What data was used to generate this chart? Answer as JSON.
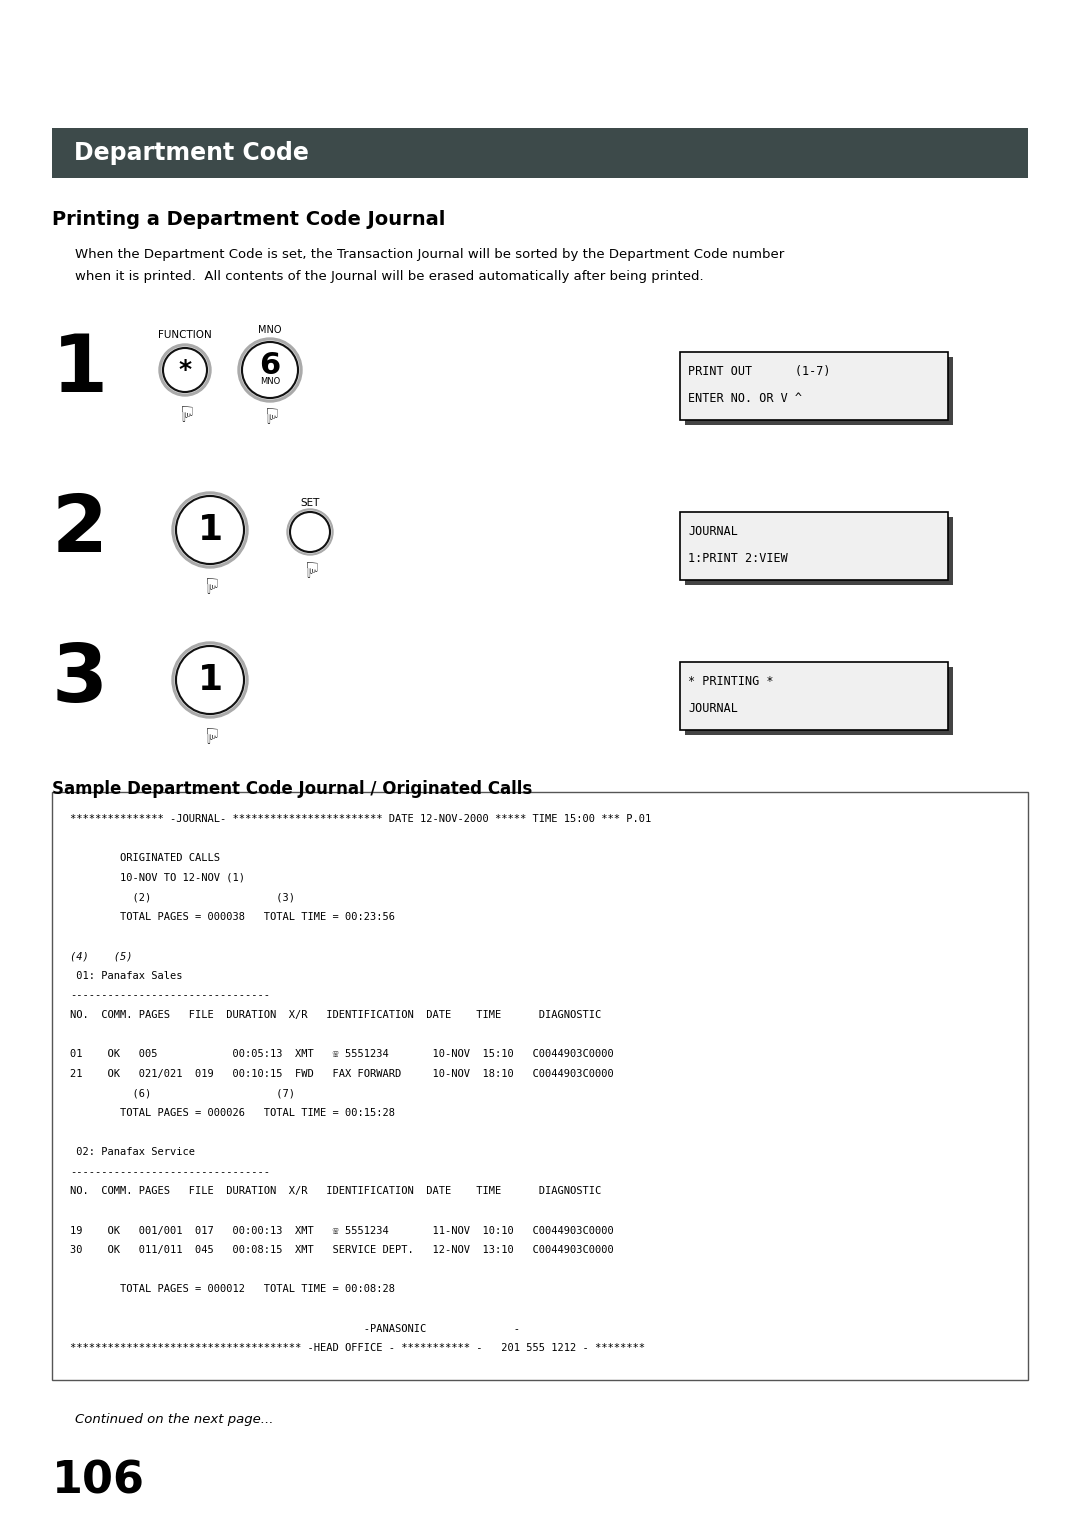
{
  "page_bg": "#ffffff",
  "header_bg": "#3d4a4a",
  "header_text": "Department Code",
  "header_text_color": "#ffffff",
  "section_title": "Printing a Department Code Journal",
  "body_text_line1": "When the Department Code is set, the Transaction Journal will be sorted by the Department Code number",
  "body_text_line2": "when it is printed.  All contents of the Journal will be erased automatically after being printed.",
  "steps": [
    {
      "number": "1",
      "display_lines": [
        "PRINT OUT      (1-7)",
        "ENTER NO. OR V ^"
      ]
    },
    {
      "number": "2",
      "display_lines": [
        "JOURNAL",
        "1:PRINT 2:VIEW"
      ]
    },
    {
      "number": "3",
      "display_lines": [
        "* PRINTING *",
        "JOURNAL"
      ]
    }
  ],
  "sample_title": "Sample Department Code Journal / Originated Calls",
  "journal_lines": [
    "*************** -JOURNAL- ************************ DATE 12-NOV-2000 ***** TIME 15:00 *** P.01",
    "",
    "        ORIGINATED CALLS",
    "        10-NOV TO 12-NOV (1)",
    "          (2)                    (3)",
    "        TOTAL PAGES = 000038   TOTAL TIME = 00:23:56",
    "",
    "(4)    (5)",
    " 01: Panafax Sales",
    "--------------------------------",
    "NO.  COMM. PAGES   FILE  DURATION  X/R   IDENTIFICATION  DATE    TIME      DIAGNOSTIC",
    "",
    "01    OK   005            00:05:13  XMT   ☏ 5551234       10-NOV  15:10   C0044903C0000",
    "21    OK   021/021  019   00:10:15  FWD   FAX FORWARD     10-NOV  18:10   C0044903C0000",
    "          (6)                    (7)",
    "        TOTAL PAGES = 000026   TOTAL TIME = 00:15:28",
    "",
    " 02: Panafax Service",
    "--------------------------------",
    "NO.  COMM. PAGES   FILE  DURATION  X/R   IDENTIFICATION  DATE    TIME      DIAGNOSTIC",
    "",
    "19    OK   001/001  017   00:00:13  XMT   ☏ 5551234       11-NOV  10:10   C0044903C0000",
    "30    OK   011/011  045   00:08:15  XMT   SERVICE DEPT.   12-NOV  13:10   C0044903C0000",
    "",
    "        TOTAL PAGES = 000012   TOTAL TIME = 00:08:28",
    "",
    "                                               -PANASONIC              -",
    "************************************* -HEAD OFFICE - *********** -   201 555 1212 - ********"
  ],
  "footer_italic": "Continued on the next page...",
  "page_number": "106"
}
